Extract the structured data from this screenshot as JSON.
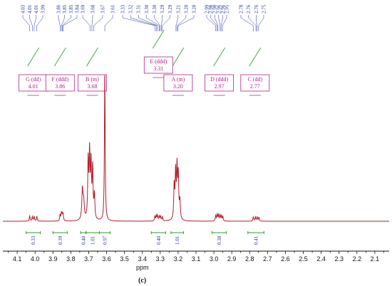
{
  "chart_data": {
    "type": "line",
    "title": "",
    "xlabel": "ppm",
    "caption": "(c)",
    "xlim": [
      4.18,
      2.02
    ],
    "x_ticks": [
      4.1,
      4.0,
      3.9,
      3.8,
      3.7,
      3.6,
      3.5,
      3.4,
      3.3,
      3.2,
      3.1,
      3.0,
      2.9,
      2.8,
      2.7,
      2.6,
      2.5,
      2.4,
      2.3,
      2.2,
      2.1
    ],
    "x_tick_labels": [
      "4.1",
      "4.0",
      "3.9",
      "3.8",
      "3.7",
      "3.6",
      "3.5",
      "3.4",
      "3.3",
      "3.2",
      "3.1",
      "3.0",
      "2.9",
      "2.8",
      "2.7",
      "2.6",
      "2.5",
      "2.4",
      "2.3",
      "2.2",
      "2.1"
    ],
    "colors": {
      "spectrum": "#b01f2a",
      "peak_labels": "#2233aa",
      "multiplets": "#b0208a",
      "integrals": "#2aa02a",
      "axis": "#111111"
    },
    "peak_labels": [
      "4.03",
      "4.01",
      "4.01",
      "3.99",
      "3.86",
      "3.85",
      "3.85",
      "3.84",
      "3.69",
      "3.68",
      "3.67",
      "3.61",
      "3.33",
      "3.32",
      "3.31",
      "3.30",
      "3.30",
      "3.29",
      "3.29",
      "3.21",
      "3.20",
      "3.20",
      "2.99",
      "2.98",
      "2.98",
      "2.96",
      "2.96",
      "2.95",
      "2.78",
      "2.76",
      "2.76",
      "2.75"
    ],
    "peak_positions": [
      4.03,
      4.015,
      4.005,
      3.99,
      3.86,
      3.853,
      3.848,
      3.843,
      3.692,
      3.682,
      3.672,
      3.61,
      3.33,
      3.322,
      3.315,
      3.305,
      3.3,
      3.293,
      3.288,
      3.212,
      3.205,
      3.2,
      2.99,
      2.982,
      2.977,
      2.965,
      2.96,
      2.952,
      2.78,
      2.765,
      2.76,
      2.75
    ],
    "multiplets": [
      {
        "label": "G (dd)",
        "value": "4.01",
        "center": 4.01
      },
      {
        "label": "F (ddd)",
        "value": "3.86",
        "center": 3.86
      },
      {
        "label": "B (m)",
        "value": "3.68",
        "center": 3.68
      },
      {
        "label": "E (ddd)",
        "value": "3.31",
        "center": 3.31
      },
      {
        "label": "A (m)",
        "value": "3.20",
        "center": 3.2
      },
      {
        "label": "D (ddd)",
        "value": "2.97",
        "center": 2.97
      },
      {
        "label": "C (dd)",
        "value": "2.77",
        "center": 2.77
      }
    ],
    "integrals": [
      {
        "from": 4.05,
        "to": 3.97,
        "label": "0.33"
      },
      {
        "from": 3.9,
        "to": 3.82,
        "label": "0.39"
      },
      {
        "from": 3.745,
        "to": 3.715,
        "label": "0.40"
      },
      {
        "from": 3.715,
        "to": 3.64,
        "label": "1.01"
      },
      {
        "from": 3.64,
        "to": 3.58,
        "label": "0.97"
      },
      {
        "from": 3.35,
        "to": 3.27,
        "label": "0.40"
      },
      {
        "from": 3.24,
        "to": 3.17,
        "label": "1.01"
      },
      {
        "from": 3.01,
        "to": 2.93,
        "label": "0.38"
      },
      {
        "from": 2.81,
        "to": 2.72,
        "label": "0.41"
      }
    ],
    "signals": [
      {
        "center": 4.03,
        "height": 0.035,
        "width": 0.0025
      },
      {
        "center": 4.015,
        "height": 0.03,
        "width": 0.0025
      },
      {
        "center": 4.005,
        "height": 0.03,
        "width": 0.0025
      },
      {
        "center": 3.99,
        "height": 0.032,
        "width": 0.0025
      },
      {
        "center": 3.86,
        "height": 0.04,
        "width": 0.0025
      },
      {
        "center": 3.853,
        "height": 0.045,
        "width": 0.0025
      },
      {
        "center": 3.848,
        "height": 0.045,
        "width": 0.0025
      },
      {
        "center": 3.843,
        "height": 0.04,
        "width": 0.0025
      },
      {
        "center": 3.735,
        "height": 0.2,
        "width": 0.004
      },
      {
        "center": 3.728,
        "height": 0.11,
        "width": 0.004
      },
      {
        "center": 3.703,
        "height": 0.38,
        "width": 0.003
      },
      {
        "center": 3.695,
        "height": 0.42,
        "width": 0.003
      },
      {
        "center": 3.687,
        "height": 0.35,
        "width": 0.003
      },
      {
        "center": 3.678,
        "height": 0.33,
        "width": 0.003
      },
      {
        "center": 3.668,
        "height": 0.16,
        "width": 0.003
      },
      {
        "center": 3.61,
        "height": 1.0,
        "width": 0.0025
      },
      {
        "center": 3.33,
        "height": 0.03,
        "width": 0.0025
      },
      {
        "center": 3.322,
        "height": 0.035,
        "width": 0.0025
      },
      {
        "center": 3.315,
        "height": 0.035,
        "width": 0.0025
      },
      {
        "center": 3.305,
        "height": 0.03,
        "width": 0.0025
      },
      {
        "center": 3.298,
        "height": 0.03,
        "width": 0.0025
      },
      {
        "center": 3.288,
        "height": 0.028,
        "width": 0.0025
      },
      {
        "center": 3.222,
        "height": 0.22,
        "width": 0.003
      },
      {
        "center": 3.214,
        "height": 0.3,
        "width": 0.003
      },
      {
        "center": 3.206,
        "height": 0.33,
        "width": 0.003
      },
      {
        "center": 3.199,
        "height": 0.28,
        "width": 0.003
      },
      {
        "center": 3.19,
        "height": 0.12,
        "width": 0.003
      },
      {
        "center": 2.99,
        "height": 0.035,
        "width": 0.0025
      },
      {
        "center": 2.982,
        "height": 0.04,
        "width": 0.0025
      },
      {
        "center": 2.975,
        "height": 0.04,
        "width": 0.0025
      },
      {
        "center": 2.966,
        "height": 0.04,
        "width": 0.0025
      },
      {
        "center": 2.958,
        "height": 0.035,
        "width": 0.0025
      },
      {
        "center": 2.95,
        "height": 0.03,
        "width": 0.0025
      },
      {
        "center": 2.78,
        "height": 0.028,
        "width": 0.0025
      },
      {
        "center": 2.768,
        "height": 0.028,
        "width": 0.0025
      },
      {
        "center": 2.758,
        "height": 0.028,
        "width": 0.0025
      },
      {
        "center": 2.748,
        "height": 0.026,
        "width": 0.0025
      }
    ]
  }
}
